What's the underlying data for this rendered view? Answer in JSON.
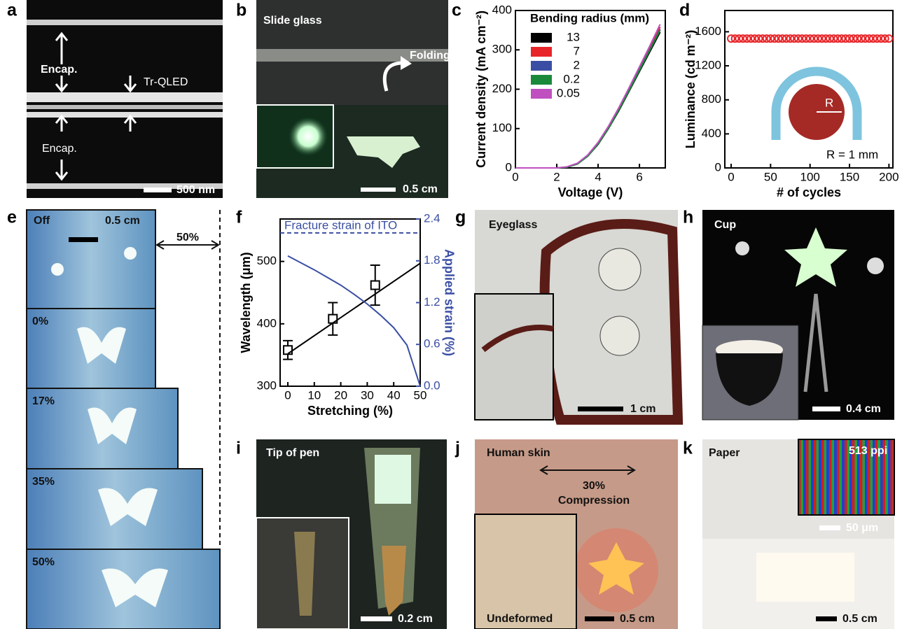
{
  "panels": {
    "a": {
      "label": "a",
      "texts": [
        "Encap.",
        "Tr-QLED",
        "Encap.",
        "500 nm"
      ]
    },
    "b": {
      "label": "b",
      "texts": [
        "Slide glass",
        "Folding",
        "0.5 cm"
      ]
    },
    "c": {
      "label": "c"
    },
    "d": {
      "label": "d"
    },
    "e": {
      "label": "e",
      "texts": [
        "Off",
        "0.5 cm",
        "50%",
        "0%",
        "17%",
        "35%",
        "50%"
      ]
    },
    "f": {
      "label": "f"
    },
    "g": {
      "label": "g",
      "texts": [
        "Eyeglass",
        "1 cm"
      ]
    },
    "h": {
      "label": "h",
      "texts": [
        "Cup",
        "0.4 cm"
      ]
    },
    "i": {
      "label": "i",
      "texts": [
        "Tip of pen",
        "0.2 cm"
      ]
    },
    "j": {
      "label": "j",
      "texts": [
        "Human skin",
        "30%",
        "Compression",
        "Undeformed",
        "0.5 cm"
      ]
    },
    "k": {
      "label": "k",
      "texts": [
        "Paper",
        "513 ppi",
        "50 μm",
        "0.5 cm"
      ]
    }
  },
  "chart_data": [
    {
      "type": "line",
      "xlabel": "Voltage (V)",
      "ylabel": "Current density (mA cm⁻²)",
      "legend_title": "Bending radius (mm)",
      "x": [
        0,
        1,
        2,
        2.5,
        3,
        3.5,
        4,
        4.5,
        5,
        5.5,
        6,
        6.5,
        7
      ],
      "series": [
        {
          "name": "13",
          "color": "#000000",
          "values": [
            0,
            0,
            0,
            2,
            10,
            30,
            60,
            100,
            145,
            195,
            245,
            295,
            345
          ]
        },
        {
          "name": "7",
          "color": "#e8262a",
          "values": [
            0,
            0,
            0,
            2,
            11,
            32,
            63,
            104,
            150,
            200,
            252,
            303,
            358
          ]
        },
        {
          "name": "2",
          "color": "#3a4fa3",
          "values": [
            0,
            0,
            0,
            2,
            11,
            31,
            62,
            102,
            148,
            198,
            249,
            300,
            352
          ]
        },
        {
          "name": "0.2",
          "color": "#1a8a3a",
          "values": [
            0,
            0,
            0,
            2,
            10,
            30,
            61,
            101,
            147,
            197,
            248,
            299,
            350
          ]
        },
        {
          "name": "0.05",
          "color": "#c050c0",
          "values": [
            0,
            0,
            0,
            3,
            12,
            33,
            65,
            106,
            153,
            204,
            257,
            310,
            365
          ]
        }
      ],
      "xlim": [
        0,
        7.25
      ],
      "ylim": [
        0,
        400
      ],
      "xticks": [
        0,
        2,
        4,
        6
      ],
      "yticks": [
        0,
        100,
        200,
        300,
        400
      ]
    },
    {
      "type": "scatter",
      "xlabel": "# of cycles",
      "ylabel": "Luminance (cd m⁻²)",
      "annotations": [
        "R",
        "R = 1 mm"
      ],
      "x": [
        0,
        5,
        10,
        15,
        20,
        25,
        30,
        35,
        40,
        45,
        50,
        55,
        60,
        65,
        70,
        75,
        80,
        85,
        90,
        95,
        100,
        105,
        110,
        115,
        120,
        125,
        130,
        135,
        140,
        145,
        150,
        155,
        160,
        165,
        170,
        175,
        180,
        185,
        190,
        195,
        200
      ],
      "series": [
        {
          "color": "#e8262a",
          "values": [
            1520,
            1520,
            1520,
            1520,
            1520,
            1520,
            1520,
            1520,
            1520,
            1520,
            1520,
            1520,
            1520,
            1520,
            1520,
            1520,
            1520,
            1520,
            1520,
            1520,
            1520,
            1520,
            1520,
            1520,
            1520,
            1520,
            1520,
            1520,
            1520,
            1520,
            1520,
            1520,
            1520,
            1520,
            1520,
            1520,
            1520,
            1520,
            1520,
            1520,
            1520
          ]
        }
      ],
      "xlim": [
        -8,
        205
      ],
      "ylim": [
        0,
        1850
      ],
      "xticks": [
        0,
        50,
        100,
        150,
        200
      ],
      "yticks": [
        0,
        400,
        800,
        1200,
        1600
      ]
    },
    {
      "type": "line",
      "xlabel": "Stretching (%)",
      "ylabel": "Wavelength (μm)",
      "y2label": "Applied strain (%)",
      "series": [
        {
          "color": "#000000",
          "marker": "square",
          "x": [
            0,
            17,
            33
          ],
          "values": [
            358,
            408,
            462
          ],
          "errors": [
            15,
            26,
            32
          ]
        },
        {
          "color": "#000000",
          "x": [
            0,
            50
          ],
          "values": [
            352,
            497
          ]
        },
        {
          "color": "#3a4fa3",
          "axis": "y2",
          "x": [
            0,
            5,
            10,
            15,
            20,
            25,
            30,
            35,
            40,
            45,
            50
          ],
          "values": [
            1.87,
            1.77,
            1.67,
            1.56,
            1.45,
            1.32,
            1.18,
            1.02,
            0.84,
            0.59,
            0
          ]
        }
      ],
      "reference_line": {
        "label": "Fracture strain of ITO",
        "value": 2.2,
        "axis": "y2",
        "color": "#3a4fa3"
      },
      "xlim": [
        -3,
        50
      ],
      "ylim": [
        300,
        568
      ],
      "y2lim": [
        0,
        2.4
      ],
      "xticks": [
        0,
        10,
        20,
        30,
        40,
        50
      ],
      "yticks": [
        300,
        400,
        500
      ],
      "y2ticks": [
        {
          "value": 0,
          "label": "0.0"
        },
        0.6,
        1.2,
        1.8,
        2.4
      ]
    }
  ]
}
